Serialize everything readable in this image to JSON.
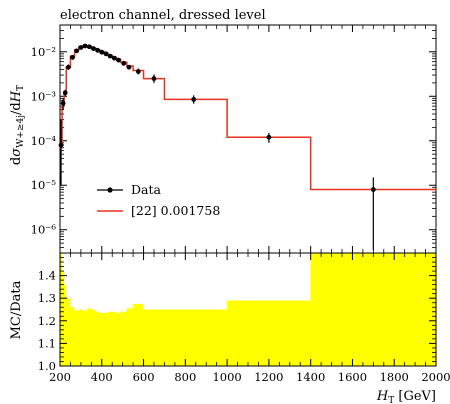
{
  "chart_data": [
    {
      "type": "line",
      "title": "electron channel, dressed level",
      "xlabel": "",
      "ylabel": "dσ_{W+≥4j}/dH_T",
      "xlim": [
        200,
        2000
      ],
      "ylim": [
        3e-07,
        0.04
      ],
      "yscale": "log",
      "yticks": [
        {
          "v": 1e-06,
          "label": "10⁻⁶"
        },
        {
          "v": 1e-05,
          "label": "10⁻⁵"
        },
        {
          "v": 0.0001,
          "label": "10⁻⁴"
        },
        {
          "v": 0.001,
          "label": "10⁻³"
        },
        {
          "v": 0.01,
          "label": "10⁻²"
        }
      ],
      "legend_position": "bottom-left",
      "colors": {
        "data": "#000000",
        "prediction": "#e8321e"
      },
      "series": [
        {
          "name": "Data",
          "kind": "points",
          "points": [
            {
              "x": 205,
              "y": 8e-05,
              "lo": 1e-05,
              "hi": 0.0003
            },
            {
              "x": 215,
              "y": 0.0007,
              "lo": 0.0005,
              "hi": 0.0009
            },
            {
              "x": 225,
              "y": 0.0012,
              "lo": 0.001,
              "hi": 0.0014
            },
            {
              "x": 240,
              "y": 0.0045,
              "lo": 0.0039,
              "hi": 0.0052
            },
            {
              "x": 260,
              "y": 0.0075,
              "lo": 0.0066,
              "hi": 0.0085
            },
            {
              "x": 280,
              "y": 0.0105,
              "lo": 0.0094,
              "hi": 0.0116
            },
            {
              "x": 300,
              "y": 0.0125,
              "lo": 0.0113,
              "hi": 0.0137
            },
            {
              "x": 320,
              "y": 0.0135,
              "lo": 0.0122,
              "hi": 0.0148
            },
            {
              "x": 340,
              "y": 0.013,
              "lo": 0.0117,
              "hi": 0.0143
            },
            {
              "x": 360,
              "y": 0.0118,
              "lo": 0.0106,
              "hi": 0.013
            },
            {
              "x": 380,
              "y": 0.0108,
              "lo": 0.0097,
              "hi": 0.0119
            },
            {
              "x": 400,
              "y": 0.0098,
              "lo": 0.0088,
              "hi": 0.0108
            },
            {
              "x": 420,
              "y": 0.009,
              "lo": 0.0081,
              "hi": 0.0099
            },
            {
              "x": 440,
              "y": 0.008,
              "lo": 0.0072,
              "hi": 0.0088
            },
            {
              "x": 460,
              "y": 0.0072,
              "lo": 0.0064,
              "hi": 0.008
            },
            {
              "x": 480,
              "y": 0.0065,
              "lo": 0.0058,
              "hi": 0.0073
            },
            {
              "x": 505,
              "y": 0.0055,
              "lo": 0.0049,
              "hi": 0.0062
            },
            {
              "x": 530,
              "y": 0.0045,
              "lo": 0.004,
              "hi": 0.0051
            },
            {
              "x": 575,
              "y": 0.0036,
              "lo": 0.0031,
              "hi": 0.0042
            },
            {
              "x": 650,
              "y": 0.0025,
              "lo": 0.002,
              "hi": 0.0031
            },
            {
              "x": 840,
              "y": 0.00085,
              "lo": 0.00068,
              "hi": 0.00105
            },
            {
              "x": 1200,
              "y": 0.00012,
              "lo": 9e-05,
              "hi": 0.00015
            },
            {
              "x": 1700,
              "y": 8e-06,
              "lo": 3.5e-07,
              "hi": 1.5e-05
            }
          ]
        },
        {
          "name": "[22] 0.001758",
          "kind": "step",
          "steps": [
            {
              "x0": 200,
              "x1": 210,
              "y": 7e-05
            },
            {
              "x0": 210,
              "x1": 220,
              "y": 0.0006
            },
            {
              "x0": 220,
              "x1": 230,
              "y": 0.0012
            },
            {
              "x0": 230,
              "x1": 250,
              "y": 0.0045
            },
            {
              "x0": 250,
              "x1": 270,
              "y": 0.008
            },
            {
              "x0": 270,
              "x1": 290,
              "y": 0.011
            },
            {
              "x0": 290,
              "x1": 310,
              "y": 0.0128
            },
            {
              "x0": 310,
              "x1": 330,
              "y": 0.0135
            },
            {
              "x0": 330,
              "x1": 350,
              "y": 0.0132
            },
            {
              "x0": 350,
              "x1": 370,
              "y": 0.0122
            },
            {
              "x0": 370,
              "x1": 390,
              "y": 0.0112
            },
            {
              "x0": 390,
              "x1": 410,
              "y": 0.0102
            },
            {
              "x0": 410,
              "x1": 430,
              "y": 0.0093
            },
            {
              "x0": 430,
              "x1": 450,
              "y": 0.0083
            },
            {
              "x0": 450,
              "x1": 470,
              "y": 0.0075
            },
            {
              "x0": 470,
              "x1": 490,
              "y": 0.0068
            },
            {
              "x0": 490,
              "x1": 520,
              "y": 0.0058
            },
            {
              "x0": 520,
              "x1": 550,
              "y": 0.0048
            },
            {
              "x0": 550,
              "x1": 600,
              "y": 0.0038
            },
            {
              "x0": 600,
              "x1": 700,
              "y": 0.0025
            },
            {
              "x0": 700,
              "x1": 1000,
              "y": 0.00085
            },
            {
              "x0": 1000,
              "x1": 1400,
              "y": 0.00012
            },
            {
              "x0": 1400,
              "x1": 2000,
              "y": 8e-06
            }
          ]
        }
      ]
    },
    {
      "type": "area",
      "title": "",
      "xlabel": "H_T [GeV]",
      "ylabel": "MC/Data",
      "xlim": [
        200,
        2000
      ],
      "ylim": [
        1.0,
        1.5
      ],
      "xticks": [
        200,
        400,
        600,
        800,
        1000,
        1200,
        1400,
        1600,
        1800,
        2000
      ],
      "yticks": [
        1.0,
        1.1,
        1.2,
        1.3,
        1.4
      ],
      "colors": {
        "band": "#ffff00"
      },
      "band_upper_steps": [
        {
          "x0": 200,
          "x1": 210,
          "y": 1.5
        },
        {
          "x0": 210,
          "x1": 220,
          "y": 1.42
        },
        {
          "x0": 220,
          "x1": 230,
          "y": 1.36
        },
        {
          "x0": 230,
          "x1": 250,
          "y": 1.3
        },
        {
          "x0": 250,
          "x1": 270,
          "y": 1.26
        },
        {
          "x0": 270,
          "x1": 290,
          "y": 1.245
        },
        {
          "x0": 290,
          "x1": 310,
          "y": 1.25
        },
        {
          "x0": 310,
          "x1": 330,
          "y": 1.245
        },
        {
          "x0": 330,
          "x1": 350,
          "y": 1.255
        },
        {
          "x0": 350,
          "x1": 370,
          "y": 1.25
        },
        {
          "x0": 370,
          "x1": 390,
          "y": 1.24
        },
        {
          "x0": 390,
          "x1": 410,
          "y": 1.235
        },
        {
          "x0": 410,
          "x1": 430,
          "y": 1.235
        },
        {
          "x0": 430,
          "x1": 450,
          "y": 1.24
        },
        {
          "x0": 450,
          "x1": 470,
          "y": 1.24
        },
        {
          "x0": 470,
          "x1": 490,
          "y": 1.235
        },
        {
          "x0": 490,
          "x1": 520,
          "y": 1.24
        },
        {
          "x0": 520,
          "x1": 550,
          "y": 1.255
        },
        {
          "x0": 550,
          "x1": 600,
          "y": 1.275
        },
        {
          "x0": 600,
          "x1": 700,
          "y": 1.25
        },
        {
          "x0": 700,
          "x1": 1000,
          "y": 1.25
        },
        {
          "x0": 1000,
          "x1": 1400,
          "y": 1.29
        },
        {
          "x0": 1400,
          "x1": 2000,
          "y": 1.5
        }
      ]
    }
  ],
  "legend": [
    {
      "label": "Data",
      "kind": "marker"
    },
    {
      "label": "[22] 0.001758",
      "kind": "line"
    }
  ]
}
